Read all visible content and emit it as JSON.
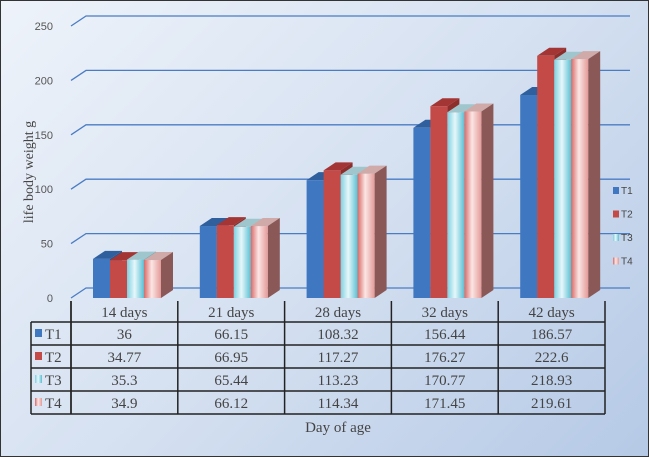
{
  "chart_data": {
    "type": "bar",
    "title": "",
    "xlabel": "Day of age",
    "ylabel": "life  body weight  g",
    "ylim": [
      0,
      250
    ],
    "yticks": [
      0,
      50,
      100,
      150,
      200,
      250
    ],
    "categories": [
      "14 days",
      "21 days",
      "28 days",
      "32 days",
      "42 days"
    ],
    "series": [
      {
        "name": "T1",
        "color": "#3f78c0",
        "values": [
          36,
          66.15,
          108.32,
          156.44,
          186.57
        ]
      },
      {
        "name": "T2",
        "color": "#c44a48",
        "values": [
          34.77,
          66.95,
          117.27,
          176.27,
          222.6
        ]
      },
      {
        "name": "T3",
        "color": "#7fd0e0",
        "values": [
          35.3,
          65.44,
          113.23,
          170.77,
          218.93
        ]
      },
      {
        "name": "T4",
        "color": "#f0b8b6",
        "values": [
          34.9,
          66.12,
          114.34,
          171.45,
          219.61
        ]
      }
    ],
    "value_labels": [
      [
        "36",
        "66.15",
        "108.32",
        "156.44",
        "186.57"
      ],
      [
        "34.77",
        "66.95",
        "117.27",
        "176.27",
        "222.6"
      ],
      [
        "35.3",
        "65.44",
        "113.23",
        "170.77",
        "218.93"
      ],
      [
        "34.9",
        "66.12",
        "114.34",
        "171.45",
        "219.61"
      ]
    ],
    "grid": true,
    "legend": "right",
    "data_table": true
  }
}
